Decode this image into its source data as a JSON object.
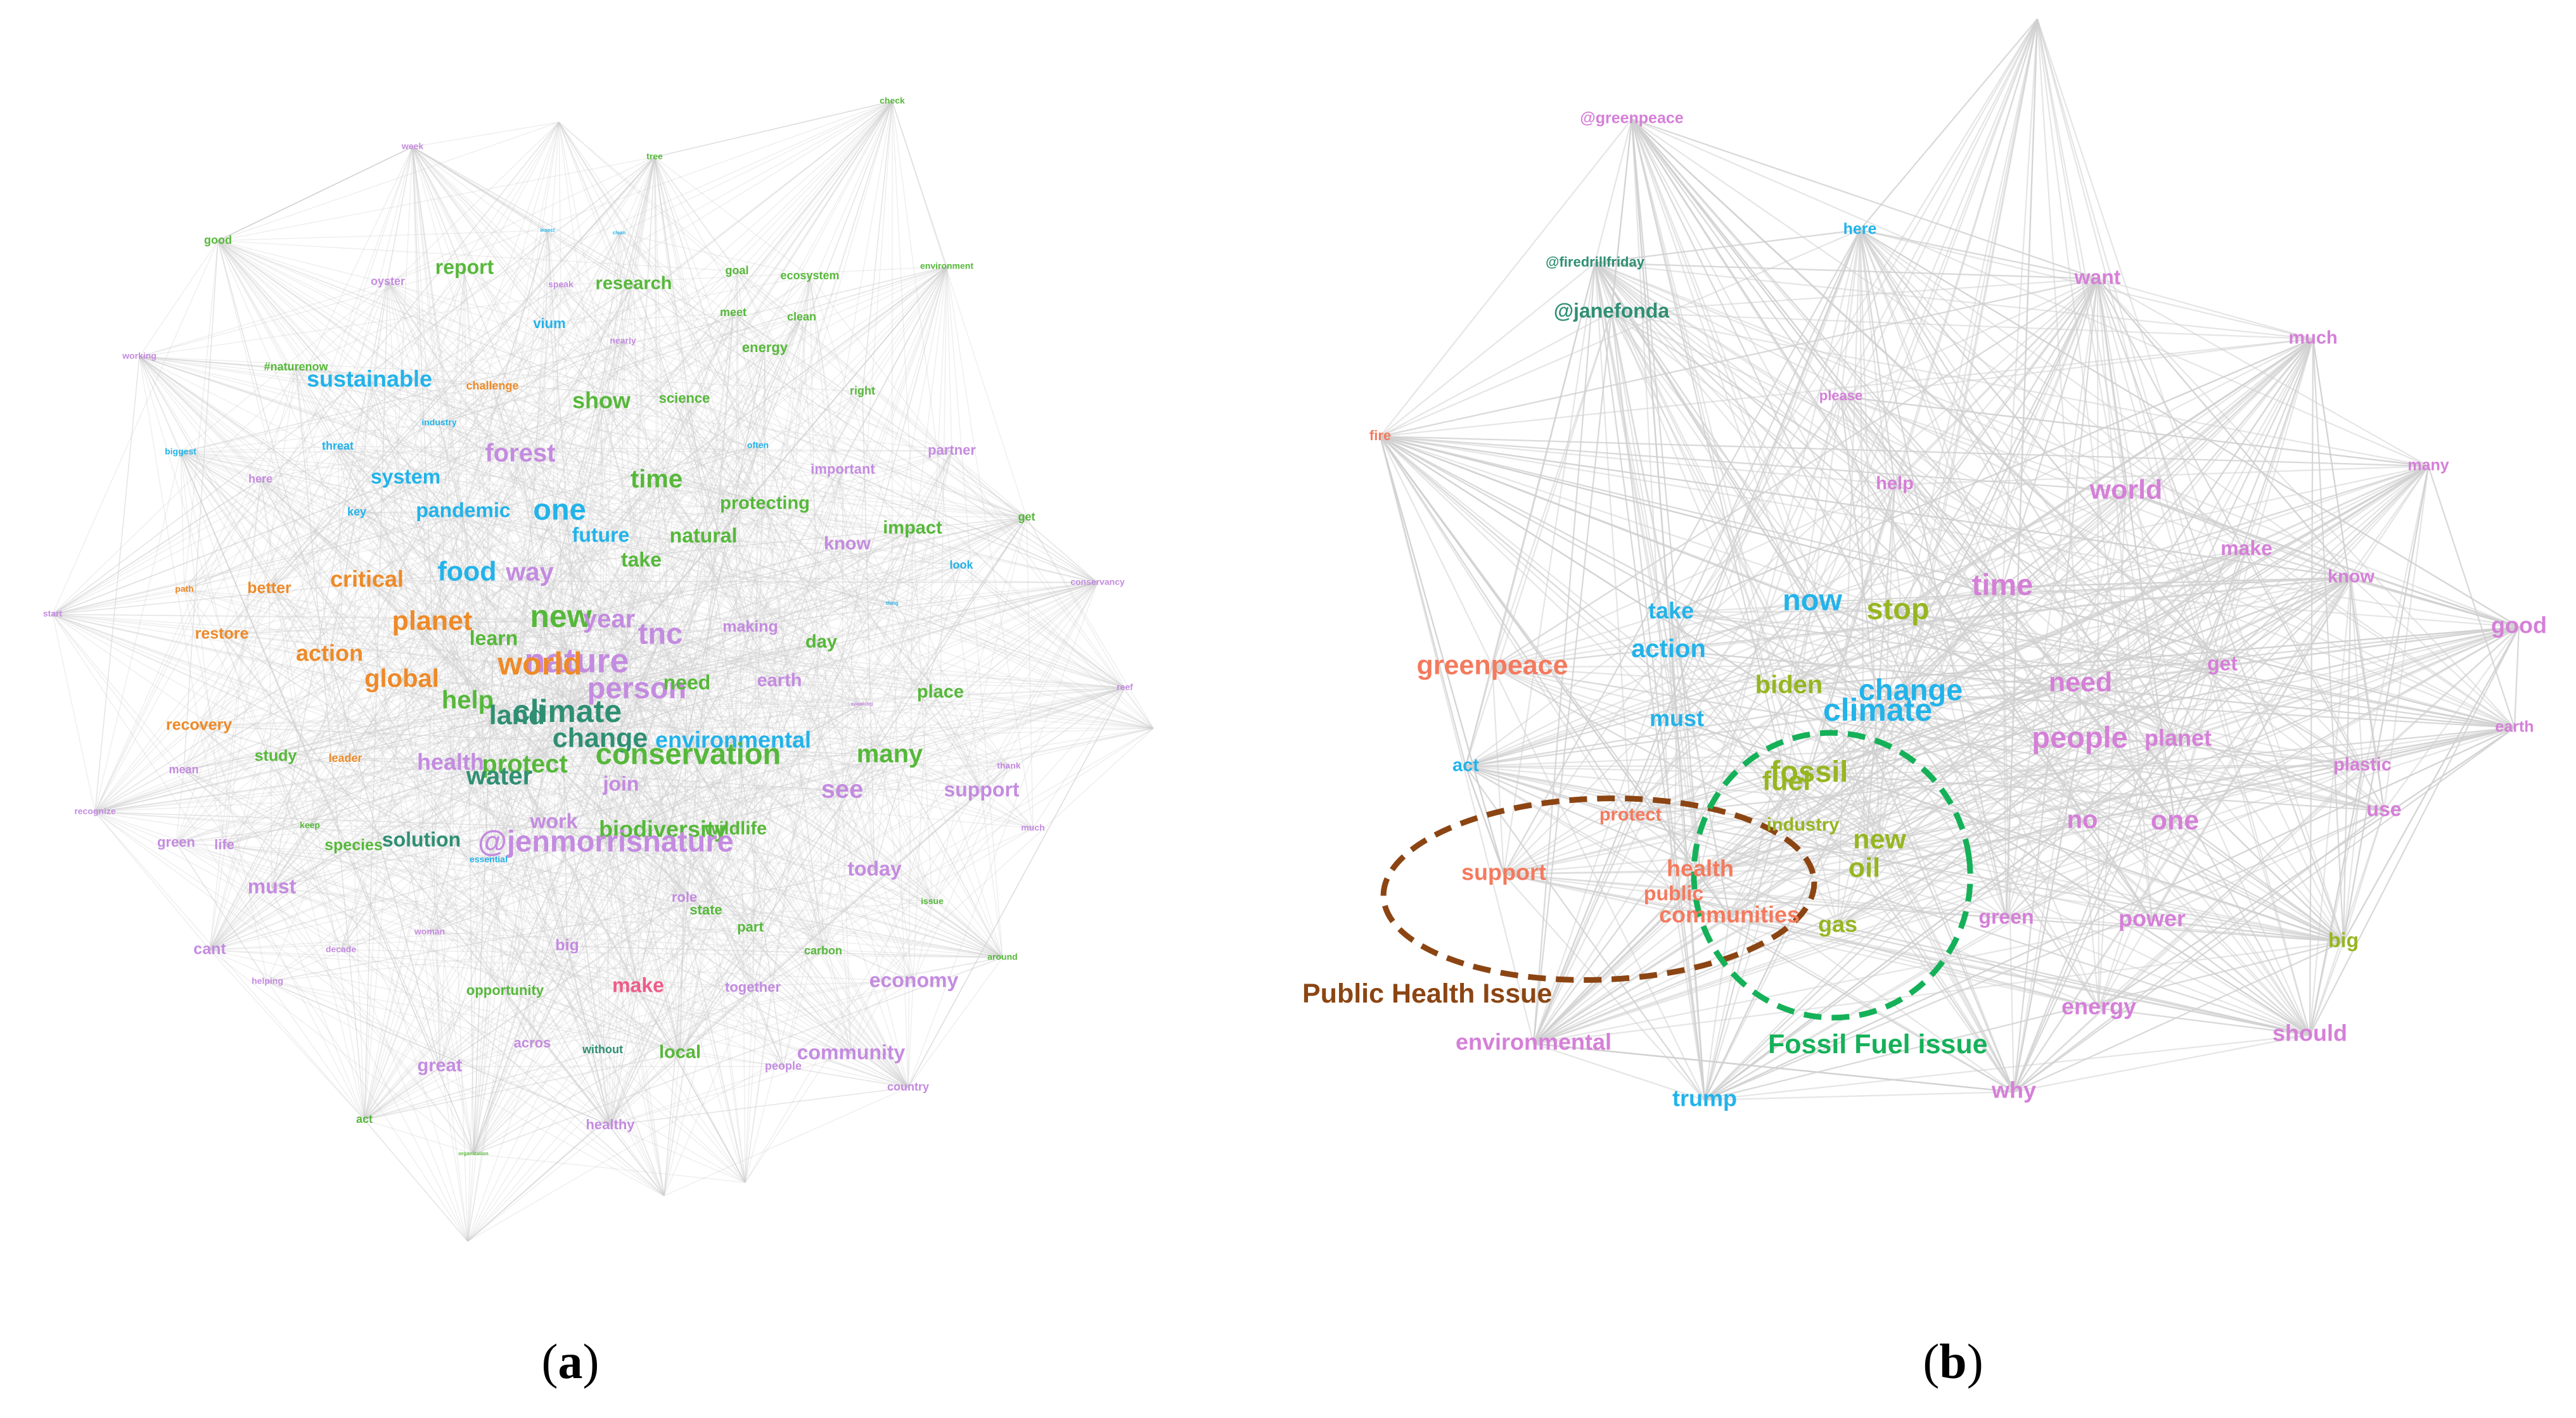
{
  "colors": {
    "green": "#56b83a",
    "cyan": "#22b3ea",
    "purple": "#c48be0",
    "orange": "#ee8a28",
    "teal": "#2f8f73",
    "pink": "#ee5c87",
    "salmon": "#f47a5e",
    "magenta": "#d57fd8",
    "olive": "#96b621",
    "brown": "#8b4513",
    "dashgreen": "#15b159",
    "edge": "#cfcfcf"
  },
  "panels": [
    {
      "id": "a",
      "label_open": "(",
      "label_letter": "a",
      "label_close": ")"
    },
    {
      "id": "b",
      "label_open": "(",
      "label_letter": "b",
      "label_close": ")"
    }
  ],
  "network_a": {
    "words": [
      {
        "t": "check",
        "c": "green",
        "s": 0.4
      },
      {
        "t": "week",
        "c": "purple",
        "s": 0.4
      },
      {
        "t": "tree",
        "c": "green",
        "s": 0.4
      },
      {
        "t": "insect",
        "c": "cyan",
        "s": 0.2
      },
      {
        "t": "clean",
        "c": "cyan",
        "s": 0.2
      },
      {
        "t": "good",
        "c": "green",
        "s": 0.5
      },
      {
        "t": "report",
        "c": "green",
        "s": 0.9
      },
      {
        "t": "oyster",
        "c": "purple",
        "s": 0.5
      },
      {
        "t": "speak",
        "c": "purple",
        "s": 0.4
      },
      {
        "t": "research",
        "c": "green",
        "s": 0.8
      },
      {
        "t": "goal",
        "c": "green",
        "s": 0.5
      },
      {
        "t": "ecosystem",
        "c": "green",
        "s": 0.5
      },
      {
        "t": "environment",
        "c": "green",
        "s": 0.4
      },
      {
        "t": "vium",
        "c": "cyan",
        "s": 0.6
      },
      {
        "t": "meet",
        "c": "green",
        "s": 0.5
      },
      {
        "t": "clean",
        "c": "green",
        "s": 0.5
      },
      {
        "t": "nearly",
        "c": "purple",
        "s": 0.4
      },
      {
        "t": "energy",
        "c": "green",
        "s": 0.6
      },
      {
        "t": "working",
        "c": "purple",
        "s": 0.4
      },
      {
        "t": "#naturenow",
        "c": "green",
        "s": 0.5
      },
      {
        "t": "sustainable",
        "c": "cyan",
        "s": 1.0
      },
      {
        "t": "challenge",
        "c": "orange",
        "s": 0.5
      },
      {
        "t": "show",
        "c": "green",
        "s": 1.0
      },
      {
        "t": "science",
        "c": "green",
        "s": 0.6
      },
      {
        "t": "right",
        "c": "green",
        "s": 0.5
      },
      {
        "t": "threat",
        "c": "cyan",
        "s": 0.5
      },
      {
        "t": "industry",
        "c": "cyan",
        "s": 0.4
      },
      {
        "t": "often",
        "c": "cyan",
        "s": 0.4
      },
      {
        "t": "partner",
        "c": "purple",
        "s": 0.6
      },
      {
        "t": "biggest",
        "c": "cyan",
        "s": 0.4
      },
      {
        "t": "forest",
        "c": "purple",
        "s": 1.1
      },
      {
        "t": "important",
        "c": "purple",
        "s": 0.6
      },
      {
        "t": "here",
        "c": "purple",
        "s": 0.5
      },
      {
        "t": "system",
        "c": "cyan",
        "s": 0.9
      },
      {
        "t": "time",
        "c": "green",
        "s": 1.1
      },
      {
        "t": "get",
        "c": "green",
        "s": 0.5
      },
      {
        "t": "key",
        "c": "cyan",
        "s": 0.5
      },
      {
        "t": "pandemic",
        "c": "cyan",
        "s": 0.9
      },
      {
        "t": "one",
        "c": "cyan",
        "s": 1.3
      },
      {
        "t": "protecting",
        "c": "green",
        "s": 0.8
      },
      {
        "t": "impact",
        "c": "green",
        "s": 0.8
      },
      {
        "t": "natural",
        "c": "green",
        "s": 0.9
      },
      {
        "t": "future",
        "c": "cyan",
        "s": 0.9
      },
      {
        "t": "know",
        "c": "purple",
        "s": 0.8
      },
      {
        "t": "look",
        "c": "cyan",
        "s": 0.5
      },
      {
        "t": "take",
        "c": "green",
        "s": 0.9
      },
      {
        "t": "path",
        "c": "orange",
        "s": 0.4
      },
      {
        "t": "critical",
        "c": "orange",
        "s": 1.0
      },
      {
        "t": "food",
        "c": "cyan",
        "s": 1.2
      },
      {
        "t": "way",
        "c": "purple",
        "s": 1.1
      },
      {
        "t": "conservancy",
        "c": "purple",
        "s": 0.4
      },
      {
        "t": "better",
        "c": "orange",
        "s": 0.7
      },
      {
        "t": "start",
        "c": "purple",
        "s": 0.4
      },
      {
        "t": "thing",
        "c": "cyan",
        "s": 0.2
      },
      {
        "t": "planet",
        "c": "orange",
        "s": 1.2
      },
      {
        "t": "new",
        "c": "green",
        "s": 1.4
      },
      {
        "t": "year",
        "c": "purple",
        "s": 1.1
      },
      {
        "t": "tnc",
        "c": "purple",
        "s": 1.3
      },
      {
        "t": "restore",
        "c": "orange",
        "s": 0.7
      },
      {
        "t": "making",
        "c": "purple",
        "s": 0.7
      },
      {
        "t": "learn",
        "c": "green",
        "s": 0.9
      },
      {
        "t": "nature",
        "c": "purple",
        "s": 1.5
      },
      {
        "t": "day",
        "c": "green",
        "s": 0.8
      },
      {
        "t": "action",
        "c": "orange",
        "s": 1.0
      },
      {
        "t": "world",
        "c": "orange",
        "s": 1.4
      },
      {
        "t": "global",
        "c": "orange",
        "s": 1.1
      },
      {
        "t": "person",
        "c": "purple",
        "s": 1.3
      },
      {
        "t": "need",
        "c": "green",
        "s": 0.9
      },
      {
        "t": "earth",
        "c": "purple",
        "s": 0.8
      },
      {
        "t": "place",
        "c": "green",
        "s": 0.8
      },
      {
        "t": "help",
        "c": "green",
        "s": 1.1
      },
      {
        "t": "land",
        "c": "teal",
        "s": 1.2
      },
      {
        "t": "climate",
        "c": "teal",
        "s": 1.4
      },
      {
        "t": "recovery",
        "c": "orange",
        "s": 0.7
      },
      {
        "t": "change",
        "c": "teal",
        "s": 1.2
      },
      {
        "t": "environmental",
        "c": "cyan",
        "s": 1.0
      },
      {
        "t": "speaking",
        "c": "purple",
        "s": 0.2
      },
      {
        "t": "reef",
        "c": "purple",
        "s": 0.4
      },
      {
        "t": "study",
        "c": "green",
        "s": 0.7
      },
      {
        "t": "leader",
        "c": "orange",
        "s": 0.5
      },
      {
        "t": "health",
        "c": "purple",
        "s": 1.0
      },
      {
        "t": "protect",
        "c": "green",
        "s": 1.1
      },
      {
        "t": "conservation",
        "c": "green",
        "s": 1.3
      },
      {
        "t": "many",
        "c": "green",
        "s": 1.1
      },
      {
        "t": "water",
        "c": "teal",
        "s": 1.1
      },
      {
        "t": "join",
        "c": "purple",
        "s": 0.9
      },
      {
        "t": "thank",
        "c": "purple",
        "s": 0.4
      },
      {
        "t": "mean",
        "c": "purple",
        "s": 0.5
      },
      {
        "t": "see",
        "c": "purple",
        "s": 1.1
      },
      {
        "t": "support",
        "c": "purple",
        "s": 0.9
      },
      {
        "t": "recognize",
        "c": "purple",
        "s": 0.4
      },
      {
        "t": "keep",
        "c": "green",
        "s": 0.4
      },
      {
        "t": "work",
        "c": "purple",
        "s": 0.9
      },
      {
        "t": "wildlife",
        "c": "green",
        "s": 0.8
      },
      {
        "t": "biodiversity",
        "c": "green",
        "s": 1.0
      },
      {
        "t": "green",
        "c": "purple",
        "s": 0.6
      },
      {
        "t": "life",
        "c": "purple",
        "s": 0.6
      },
      {
        "t": "species",
        "c": "green",
        "s": 0.7
      },
      {
        "t": "solution",
        "c": "teal",
        "s": 0.9
      },
      {
        "t": "@jenmorrisnature",
        "c": "purple",
        "s": 1.3
      },
      {
        "t": "essential",
        "c": "cyan",
        "s": 0.4
      },
      {
        "t": "much",
        "c": "purple",
        "s": 0.4
      },
      {
        "t": "must",
        "c": "purple",
        "s": 0.9
      },
      {
        "t": "role",
        "c": "purple",
        "s": 0.6
      },
      {
        "t": "today",
        "c": "purple",
        "s": 0.9
      },
      {
        "t": "issue",
        "c": "green",
        "s": 0.4
      },
      {
        "t": "state",
        "c": "green",
        "s": 0.6
      },
      {
        "t": "part",
        "c": "green",
        "s": 0.6
      },
      {
        "t": "woman",
        "c": "purple",
        "s": 0.4
      },
      {
        "t": "cant",
        "c": "purple",
        "s": 0.7
      },
      {
        "t": "decade",
        "c": "purple",
        "s": 0.4
      },
      {
        "t": "big",
        "c": "purple",
        "s": 0.7
      },
      {
        "t": "carbon",
        "c": "green",
        "s": 0.5
      },
      {
        "t": "around",
        "c": "green",
        "s": 0.4
      },
      {
        "t": "helping",
        "c": "purple",
        "s": 0.4
      },
      {
        "t": "economy",
        "c": "purple",
        "s": 0.9
      },
      {
        "t": "opportunity",
        "c": "green",
        "s": 0.6
      },
      {
        "t": "make",
        "c": "pink",
        "s": 0.9
      },
      {
        "t": "together",
        "c": "purple",
        "s": 0.6
      },
      {
        "t": "acros",
        "c": "purple",
        "s": 0.6
      },
      {
        "t": "without",
        "c": "teal",
        "s": 0.5
      },
      {
        "t": "local",
        "c": "green",
        "s": 0.8
      },
      {
        "t": "community",
        "c": "purple",
        "s": 0.9
      },
      {
        "t": "great",
        "c": "purple",
        "s": 0.8
      },
      {
        "t": "people",
        "c": "purple",
        "s": 0.5
      },
      {
        "t": "country",
        "c": "purple",
        "s": 0.5
      },
      {
        "t": "act",
        "c": "green",
        "s": 0.5
      },
      {
        "t": "healthy",
        "c": "purple",
        "s": 0.6
      },
      {
        "t": "organization",
        "c": "green",
        "s": 0.2
      },
      {
        "t": "create",
        "c": "purple",
        "s": 0.5
      }
    ]
  },
  "network_b": {
    "words": [
      {
        "t": "@greenpeace",
        "c": "magenta",
        "s": 0.7
      },
      {
        "t": "here",
        "c": "cyan",
        "s": 0.7
      },
      {
        "t": "@firedrillfriday",
        "c": "teal",
        "s": 0.6
      },
      {
        "t": "@janefonda",
        "c": "teal",
        "s": 0.9
      },
      {
        "t": "want",
        "c": "magenta",
        "s": 0.9
      },
      {
        "t": "much",
        "c": "magenta",
        "s": 0.8
      },
      {
        "t": "please",
        "c": "magenta",
        "s": 0.6
      },
      {
        "t": "fire",
        "c": "salmon",
        "s": 0.6
      },
      {
        "t": "many",
        "c": "magenta",
        "s": 0.7
      },
      {
        "t": "help",
        "c": "magenta",
        "s": 0.8
      },
      {
        "t": "world",
        "c": "magenta",
        "s": 1.2
      },
      {
        "t": "make",
        "c": "magenta",
        "s": 0.9
      },
      {
        "t": "know",
        "c": "magenta",
        "s": 0.8
      },
      {
        "t": "now",
        "c": "cyan",
        "s": 1.3
      },
      {
        "t": "time",
        "c": "magenta",
        "s": 1.3
      },
      {
        "t": "take",
        "c": "cyan",
        "s": 1.0
      },
      {
        "t": "stop",
        "c": "olive",
        "s": 1.3
      },
      {
        "t": "good",
        "c": "magenta",
        "s": 1.0
      },
      {
        "t": "action",
        "c": "cyan",
        "s": 1.1
      },
      {
        "t": "greenpeace",
        "c": "salmon",
        "s": 1.2
      },
      {
        "t": "biden",
        "c": "olive",
        "s": 1.1
      },
      {
        "t": "change",
        "c": "cyan",
        "s": 1.3
      },
      {
        "t": "need",
        "c": "magenta",
        "s": 1.2
      },
      {
        "t": "get",
        "c": "magenta",
        "s": 0.9
      },
      {
        "t": "climate",
        "c": "cyan",
        "s": 1.4
      },
      {
        "t": "must",
        "c": "cyan",
        "s": 1.0
      },
      {
        "t": "earth",
        "c": "magenta",
        "s": 0.7
      },
      {
        "t": "people",
        "c": "magenta",
        "s": 1.3
      },
      {
        "t": "planet",
        "c": "magenta",
        "s": 1.0
      },
      {
        "t": "act",
        "c": "cyan",
        "s": 0.8
      },
      {
        "t": "fossil",
        "c": "olive",
        "s": 1.3
      },
      {
        "t": "plastic",
        "c": "magenta",
        "s": 0.8
      },
      {
        "t": "fuel",
        "c": "olive",
        "s": 1.2
      },
      {
        "t": "protect",
        "c": "salmon",
        "s": 0.8
      },
      {
        "t": "use",
        "c": "magenta",
        "s": 0.9
      },
      {
        "t": "industry",
        "c": "olive",
        "s": 0.8
      },
      {
        "t": "no",
        "c": "magenta",
        "s": 1.1
      },
      {
        "t": "one",
        "c": "magenta",
        "s": 1.2
      },
      {
        "t": "new",
        "c": "olive",
        "s": 1.2
      },
      {
        "t": "oil",
        "c": "olive",
        "s": 1.2
      },
      {
        "t": "support",
        "c": "salmon",
        "s": 1.0
      },
      {
        "t": "health",
        "c": "salmon",
        "s": 1.0
      },
      {
        "t": "public",
        "c": "salmon",
        "s": 0.9
      },
      {
        "t": "communities",
        "c": "salmon",
        "s": 1.0
      },
      {
        "t": "green",
        "c": "magenta",
        "s": 0.9
      },
      {
        "t": "gas",
        "c": "olive",
        "s": 1.0
      },
      {
        "t": "power",
        "c": "magenta",
        "s": 1.0
      },
      {
        "t": "big",
        "c": "olive",
        "s": 0.9
      },
      {
        "t": "energy",
        "c": "magenta",
        "s": 1.0
      },
      {
        "t": "environmental",
        "c": "magenta",
        "s": 1.0
      },
      {
        "t": "should",
        "c": "magenta",
        "s": 1.0
      },
      {
        "t": "trump",
        "c": "cyan",
        "s": 1.0
      },
      {
        "t": "why",
        "c": "magenta",
        "s": 1.0
      }
    ],
    "annotations": {
      "public_health": "Public Health Issue",
      "fossil_fuel": "Fossil Fuel issue"
    }
  }
}
